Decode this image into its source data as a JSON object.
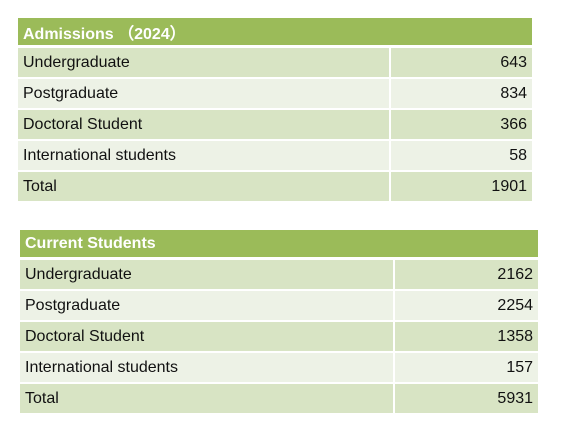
{
  "admissions": {
    "title": "Admissions （2024）",
    "rows": [
      {
        "label": "Undergraduate",
        "value": "643"
      },
      {
        "label": "Postgraduate",
        "value": "834"
      },
      {
        "label": "Doctoral Student",
        "value": "366"
      },
      {
        "label": "International students",
        "value": "58"
      },
      {
        "label": "Total",
        "value": "1901"
      }
    ]
  },
  "current": {
    "title": "Current Students",
    "rows": [
      {
        "label": "Undergraduate",
        "value": "2162"
      },
      {
        "label": "Postgraduate",
        "value": "2254"
      },
      {
        "label": "Doctoral Student",
        "value": "1358"
      },
      {
        "label": "International students",
        "value": "157"
      },
      {
        "label": "Total",
        "value": "5931"
      }
    ]
  }
}
